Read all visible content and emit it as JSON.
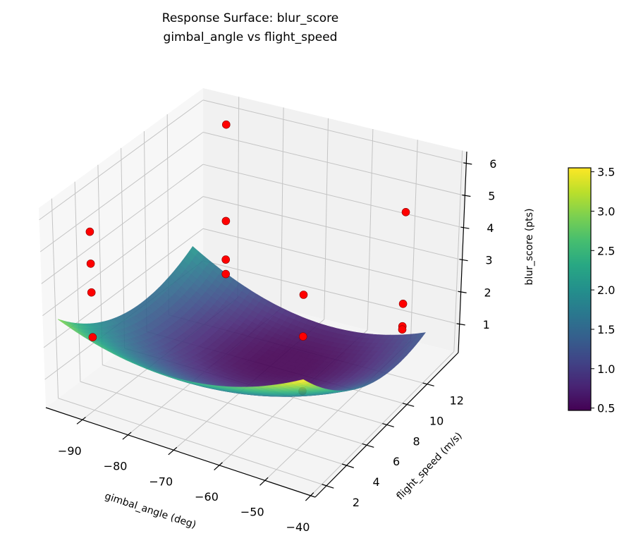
{
  "chart_data": {
    "type": "surface3d",
    "title": "Response Surface: blur_score",
    "subtitle": "gimbal_angle vs flight_speed",
    "xlabel": "gimbal_angle (deg)",
    "ylabel": "flight_speed (m/s)",
    "zlabel": "blur_score (pts)",
    "xlim": [
      -98,
      -39
    ],
    "ylim": [
      0.88,
      15.1
    ],
    "zlim": [
      0.12,
      6.37
    ],
    "x_ticks": [
      -90,
      -80,
      -70,
      -60,
      -50,
      -40
    ],
    "x_tick_labels": [
      "−90",
      "−80",
      "−70",
      "−60",
      "−50",
      "−40"
    ],
    "y_ticks": [
      2,
      4,
      6,
      8,
      10,
      12
    ],
    "y_tick_labels": [
      "2",
      "4",
      "6",
      "8",
      "10",
      "12"
    ],
    "z_ticks": [
      1,
      2,
      3,
      4,
      5,
      6
    ],
    "z_tick_labels": [
      "1",
      "2",
      "3",
      "4",
      "5",
      "6"
    ],
    "grid": true,
    "colormap": "viridis",
    "surface": {
      "x_range": [
        -95,
        -42
      ],
      "y_range": [
        1,
        13
      ],
      "model": "z = 0.62 - 0.05*xn - 0.8*yn - 0.35*xn*yn + 0.94*xn^2 + 0.94*yn^2 (xn, yn normalized to [-1,1] over surface range)",
      "alpha": 0.9
    },
    "points": [
      {
        "x": -90,
        "y": 2,
        "z": 2.4
      },
      {
        "x": -90,
        "y": 2,
        "z": 3.8
      },
      {
        "x": -90,
        "y": 2,
        "z": 4.7
      },
      {
        "x": -90,
        "y": 2,
        "z": 5.7
      },
      {
        "x": -90,
        "y": 14,
        "z": 5.8
      },
      {
        "x": -90,
        "y": 14,
        "z": 2.8
      },
      {
        "x": -90,
        "y": 14,
        "z": 1.6
      },
      {
        "x": -90,
        "y": 14,
        "z": 1.15
      },
      {
        "x": -58,
        "y": 8,
        "z": 0.4
      },
      {
        "x": -58,
        "y": 8,
        "z": 2.1
      },
      {
        "x": -58,
        "y": 8,
        "z": 3.4
      },
      {
        "x": -45,
        "y": 12,
        "z": 5.25
      },
      {
        "x": -45,
        "y": 12,
        "z": 2.4
      },
      {
        "x": -45,
        "y": 12,
        "z": 1.7
      },
      {
        "x": -45,
        "y": 12,
        "z": 1.6
      }
    ],
    "point_color": "#ff0000",
    "colorbar": {
      "range": [
        0.47,
        3.55
      ],
      "ticks": [
        0.5,
        1.0,
        1.5,
        2.0,
        2.5,
        3.0,
        3.5
      ],
      "tick_labels": [
        "0.5",
        "1.0",
        "1.5",
        "2.0",
        "2.5",
        "3.0",
        "3.5"
      ]
    }
  }
}
